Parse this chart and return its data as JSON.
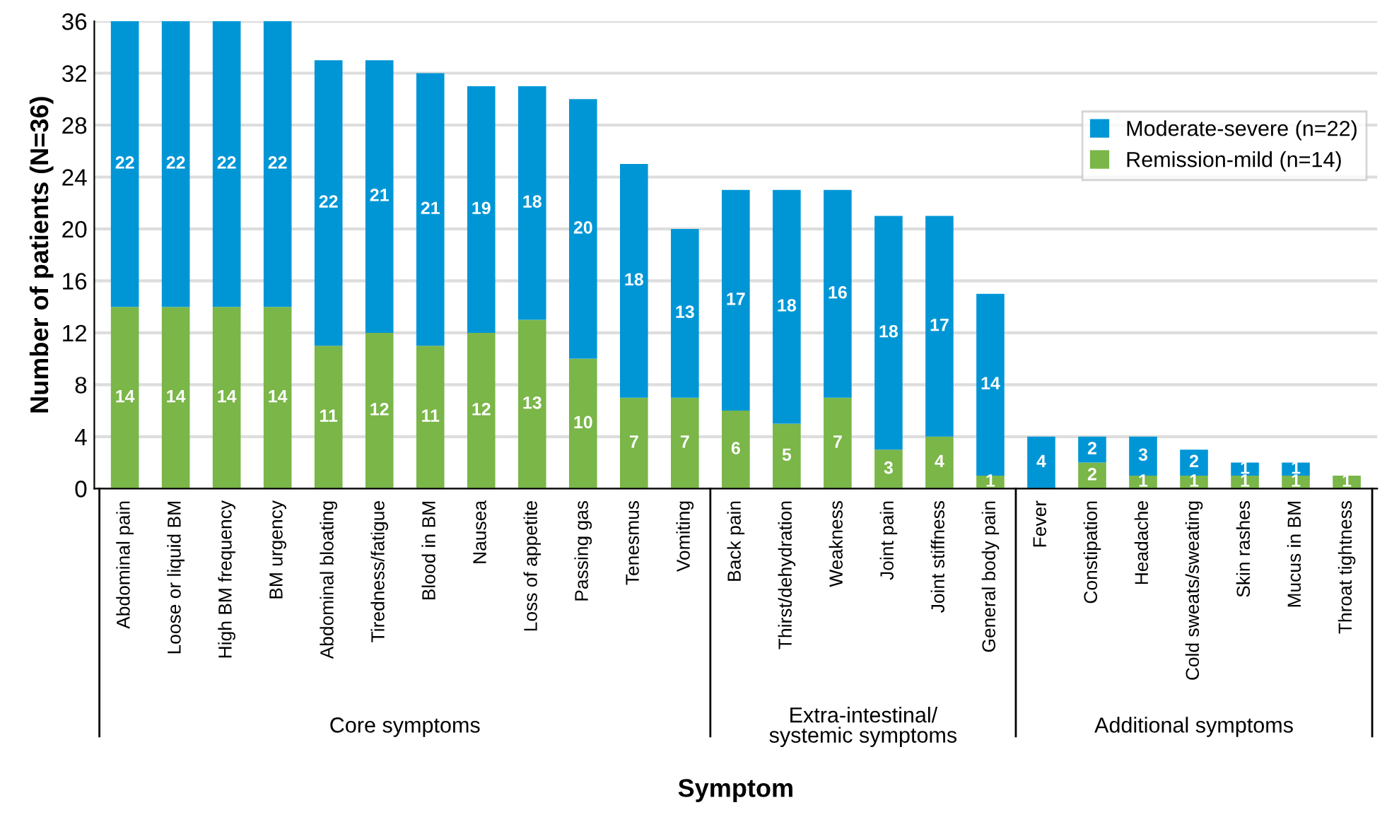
{
  "chart_data": {
    "type": "bar",
    "stacked": true,
    "xlabel": "Symptom",
    "ylabel": "Number of patients (N=36)",
    "categories": [
      "Abdominal pain",
      "Loose or liquid BM",
      "High BM frequency",
      "BM urgency",
      "Abdominal bloating",
      "Tiredness/fatigue",
      "Blood in BM",
      "Nausea",
      "Loss of appetite",
      "Passing gas",
      "Tenesmus",
      "Vomiting",
      "Back pain",
      "Thirst/dehydration",
      "Weakness",
      "Joint pain",
      "Joint stiffness",
      "General body pain",
      "Fever",
      "Constipation",
      "Headache",
      "Cold sweats/sweating",
      "Skin rashes",
      "Mucus in BM",
      "Throat tightness"
    ],
    "series": [
      {
        "name": "Remission-mild (n=14)",
        "color": "#7ab648",
        "values": [
          14,
          14,
          14,
          14,
          11,
          12,
          11,
          12,
          13,
          10,
          7,
          7,
          6,
          5,
          7,
          3,
          4,
          1,
          0,
          2,
          1,
          1,
          1,
          1,
          1
        ],
        "value_labels": [
          "14",
          "14",
          "14",
          "14",
          "11",
          "12",
          "11",
          "12",
          "13",
          "10",
          "7",
          "7",
          "6",
          "5",
          "7",
          "3",
          "4",
          "1",
          null,
          "2",
          "1",
          "1",
          "1",
          "1",
          "1"
        ]
      },
      {
        "name": "Moderate-severe (n=22)",
        "color": "#0096d6",
        "values": [
          22,
          22,
          22,
          22,
          22,
          21,
          21,
          19,
          18,
          20,
          18,
          13,
          17,
          18,
          16,
          18,
          17,
          14,
          4,
          2,
          3,
          2,
          1,
          1,
          0
        ],
        "value_labels": [
          "22",
          "22",
          "22",
          "22",
          "22",
          "21",
          "21",
          "19",
          "18",
          "20",
          "18",
          "13",
          "17",
          "18",
          "16",
          "18",
          "17",
          "14",
          "4",
          "2",
          "3",
          "2",
          "1",
          "1",
          null
        ]
      }
    ],
    "ylim": [
      0,
      36
    ],
    "yticks": [
      0,
      4,
      8,
      12,
      16,
      20,
      24,
      28,
      32,
      36
    ],
    "grid": "y",
    "legend": "top right",
    "annotations": [
      "Core symptoms",
      "Extra-intestinal/\nsystemic symptoms",
      "Additional symptoms"
    ]
  }
}
